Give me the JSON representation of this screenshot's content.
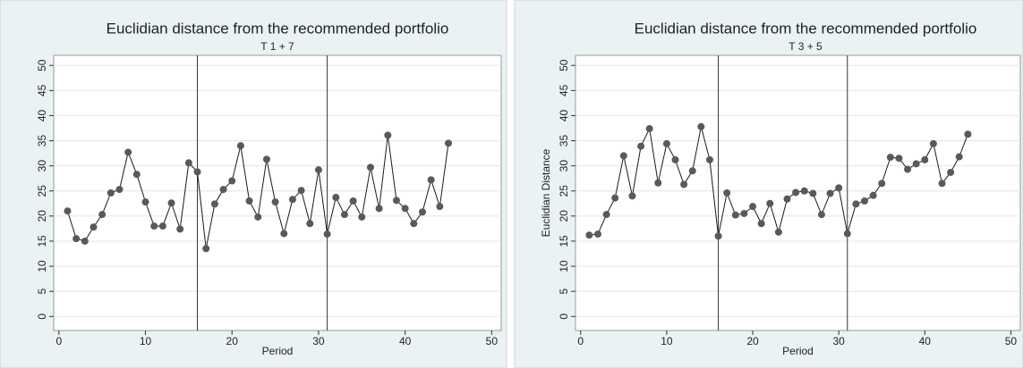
{
  "chart_data": [
    {
      "type": "line",
      "title": "Euclidian distance from the recommended portfolio",
      "subtitle": "T 1 + 7",
      "xlabel": "Period",
      "x": [
        1,
        2,
        3,
        4,
        5,
        6,
        7,
        8,
        9,
        10,
        11,
        12,
        13,
        14,
        15,
        16,
        17,
        18,
        19,
        20,
        21,
        22,
        23,
        24,
        25,
        26,
        27,
        28,
        29,
        30,
        31,
        32,
        33,
        34,
        35,
        36,
        37,
        38,
        39,
        40,
        41,
        42,
        43,
        44,
        45
      ],
      "values": [
        21,
        15.5,
        15,
        17.8,
        20.3,
        24.6,
        25.3,
        32.7,
        28.3,
        22.8,
        18,
        18,
        22.6,
        17.4,
        30.6,
        28.8,
        13.5,
        22.4,
        25.3,
        27,
        34,
        23,
        19.8,
        31.3,
        22.8,
        16.5,
        23.3,
        25.1,
        18.5,
        29.2,
        16.4,
        23.7,
        20.3,
        23,
        19.8,
        29.7,
        21.5,
        36.1,
        23.1,
        21.5,
        18.5,
        20.8,
        27.2,
        21.9,
        34.5
      ],
      "vlines": [
        16,
        31
      ],
      "color": "#1a1a1a",
      "marker_color": "#595959",
      "xlim": [
        -0.6,
        51.1
      ],
      "ylim": [
        -2.8,
        52
      ],
      "xticks": [
        0,
        10,
        20,
        30,
        40,
        50
      ],
      "yticks": [
        0,
        5,
        10,
        15,
        20,
        25,
        30,
        35,
        40,
        45,
        50
      ],
      "grid": true
    },
    {
      "type": "line",
      "title": "Euclidian distance from the recommended portfolio",
      "subtitle": "T 3 + 5",
      "xlabel": "Period",
      "ylabel": "Euclidian Distance",
      "x": [
        1,
        2,
        3,
        4,
        5,
        6,
        7,
        8,
        9,
        10,
        11,
        12,
        13,
        14,
        15,
        16,
        17,
        18,
        19,
        20,
        21,
        22,
        23,
        24,
        25,
        26,
        27,
        28,
        29,
        30,
        31,
        32,
        33,
        34,
        35,
        36,
        37,
        38,
        39,
        40,
        41,
        42,
        43,
        44,
        45
      ],
      "values": [
        16.2,
        16.4,
        20.3,
        23.6,
        32,
        24,
        33.9,
        37.4,
        26.6,
        34.4,
        31.2,
        26.3,
        29,
        37.8,
        31.2,
        16,
        24.6,
        20.2,
        20.5,
        21.9,
        18.5,
        22.5,
        16.8,
        23.4,
        24.7,
        25,
        24.5,
        20.3,
        24.5,
        25.6,
        16.5,
        22.4,
        23,
        24.1,
        26.5,
        31.7,
        31.5,
        29.3,
        30.4,
        31.2,
        34.4,
        26.5,
        28.7,
        31.8,
        36.3
      ],
      "vlines": [
        16,
        31
      ],
      "color": "#1a1a1a",
      "marker_color": "#595959",
      "xlim": [
        -0.6,
        51.1
      ],
      "ylim": [
        -2.8,
        52
      ],
      "xticks": [
        0,
        10,
        20,
        30,
        40,
        50
      ],
      "yticks": [
        0,
        5,
        10,
        15,
        20,
        25,
        30,
        35,
        40,
        45,
        50
      ],
      "grid": true
    }
  ]
}
